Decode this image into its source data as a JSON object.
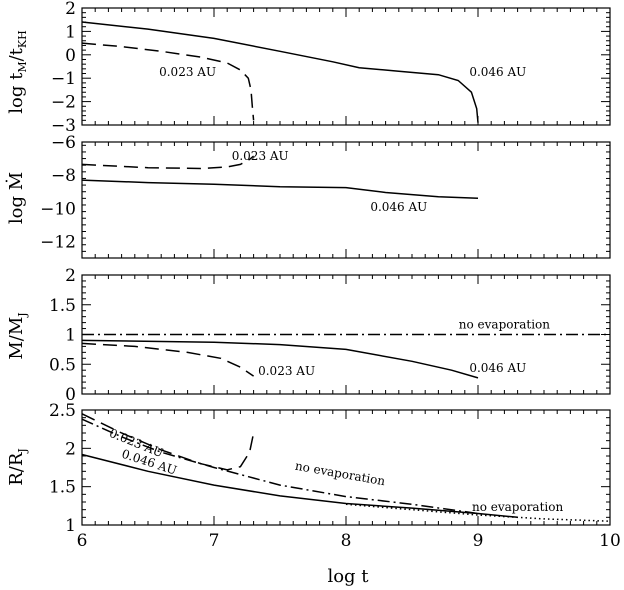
{
  "chart_data": [
    {
      "type": "line",
      "ylabel": "log t_M/t_KH",
      "xlim": [
        6,
        10
      ],
      "ylim": [
        -3,
        2
      ],
      "yticks": [
        -3,
        -2,
        -1,
        0,
        1,
        2
      ],
      "series": [
        {
          "name": "0.023 AU",
          "style": "dashed",
          "x": [
            6.0,
            6.3,
            6.6,
            6.9,
            7.1,
            7.2,
            7.26,
            7.28,
            7.29,
            7.3
          ],
          "y": [
            0.5,
            0.35,
            0.15,
            -0.1,
            -0.35,
            -0.65,
            -1.0,
            -1.5,
            -2.2,
            -2.8
          ]
        },
        {
          "name": "0.046 AU",
          "style": "solid",
          "x": [
            6.0,
            6.5,
            7.0,
            7.5,
            7.9,
            8.1,
            8.4,
            8.7,
            8.85,
            8.95,
            8.99,
            9.0
          ],
          "y": [
            1.4,
            1.1,
            0.7,
            0.15,
            -0.3,
            -0.55,
            -0.7,
            -0.85,
            -1.1,
            -1.6,
            -2.3,
            -2.9
          ]
        }
      ],
      "annotations": [
        {
          "text": "0.023 AU",
          "x": 6.8,
          "y": -0.9
        },
        {
          "text": "0.046 AU",
          "x": 9.15,
          "y": -0.9
        }
      ]
    },
    {
      "type": "line",
      "ylabel": "log Ṁ",
      "xlim": [
        6,
        10
      ],
      "ylim": [
        -13,
        -6
      ],
      "yticks": [
        -12,
        -10,
        -8,
        -6
      ],
      "series": [
        {
          "name": "0.023 AU",
          "style": "dashed",
          "x": [
            6.0,
            6.5,
            6.9,
            7.1,
            7.2,
            7.27,
            7.3
          ],
          "y": [
            -7.35,
            -7.55,
            -7.6,
            -7.5,
            -7.35,
            -7.05,
            -6.85
          ]
        },
        {
          "name": "0.046 AU",
          "style": "solid",
          "x": [
            6.0,
            6.5,
            7.0,
            7.5,
            8.0,
            8.3,
            8.7,
            9.0
          ],
          "y": [
            -8.3,
            -8.45,
            -8.55,
            -8.7,
            -8.75,
            -9.05,
            -9.3,
            -9.4
          ]
        }
      ],
      "annotations": [
        {
          "text": "0.023 AU",
          "x": 7.35,
          "y": -7.1
        },
        {
          "text": "0.046 AU",
          "x": 8.4,
          "y": -10.15
        }
      ]
    },
    {
      "type": "line",
      "ylabel": "M/M_J",
      "xlim": [
        6,
        10
      ],
      "ylim": [
        0,
        2
      ],
      "yticks": [
        0,
        0.5,
        1,
        1.5,
        2
      ],
      "series": [
        {
          "name": "no evaporation",
          "style": "dashdot",
          "x": [
            6,
            10
          ],
          "y": [
            1.0,
            1.0
          ]
        },
        {
          "name": "0.023 AU",
          "style": "dashed",
          "x": [
            6.0,
            6.4,
            6.8,
            7.05,
            7.2,
            7.3
          ],
          "y": [
            0.85,
            0.8,
            0.7,
            0.6,
            0.45,
            0.3
          ]
        },
        {
          "name": "0.046 AU",
          "style": "solid",
          "x": [
            6.0,
            7.0,
            7.5,
            8.0,
            8.5,
            8.8,
            9.0
          ],
          "y": [
            0.9,
            0.87,
            0.83,
            0.75,
            0.55,
            0.4,
            0.27
          ]
        }
      ],
      "annotations": [
        {
          "text": "no evaporation",
          "x": 9.2,
          "y": 1.1
        },
        {
          "text": "0.023 AU",
          "x": 7.55,
          "y": 0.32
        },
        {
          "text": "0.046 AU",
          "x": 9.15,
          "y": 0.37
        }
      ]
    },
    {
      "type": "line",
      "ylabel": "R/R_J",
      "xlabel": "log t",
      "xlim": [
        6,
        10
      ],
      "ylim": [
        1,
        2.5
      ],
      "yticks": [
        1,
        1.5,
        2,
        2.5
      ],
      "xticks": [
        6,
        7,
        8,
        9,
        10
      ],
      "series": [
        {
          "name": "0.023 AU",
          "style": "dashed",
          "x": [
            6.0,
            6.3,
            6.6,
            6.9,
            7.1,
            7.2,
            7.27,
            7.3
          ],
          "y": [
            2.45,
            2.2,
            1.98,
            1.8,
            1.72,
            1.76,
            1.95,
            2.2
          ]
        },
        {
          "name": "no evaporation (0.023 AU)",
          "style": "dashdot",
          "x": [
            6.0,
            6.3,
            6.6,
            7.0,
            7.5,
            8.0,
            8.5,
            9.0
          ],
          "y": [
            2.38,
            2.15,
            1.95,
            1.75,
            1.52,
            1.37,
            1.27,
            1.15
          ]
        },
        {
          "name": "0.046 AU",
          "style": "solid",
          "x": [
            6.0,
            6.5,
            7.0,
            7.5,
            8.0,
            8.5,
            9.0,
            9.3
          ],
          "y": [
            1.92,
            1.7,
            1.52,
            1.38,
            1.28,
            1.22,
            1.15,
            1.1
          ]
        },
        {
          "name": "no evaporation (0.046 AU)",
          "style": "dotted",
          "x": [
            8.0,
            8.5,
            9.0,
            9.5,
            10.0
          ],
          "y": [
            1.27,
            1.2,
            1.13,
            1.08,
            1.05
          ]
        }
      ],
      "annotations": [
        {
          "text": "0.023 AU",
          "x": 6.4,
          "y": 2.02,
          "rotate": 22
        },
        {
          "text": "0.046 AU",
          "x": 6.5,
          "y": 1.77,
          "rotate": 18
        },
        {
          "text": "no evaporation",
          "x": 7.95,
          "y": 1.62,
          "rotate": 10
        },
        {
          "text": "no evaporation",
          "x": 9.3,
          "y": 1.18,
          "rotate": 0
        }
      ]
    }
  ]
}
